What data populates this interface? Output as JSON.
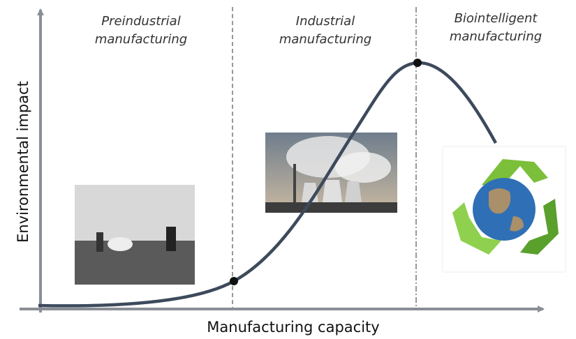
{
  "phases": [
    {
      "lines": [
        "Preindustrial",
        "manufacturing"
      ]
    },
    {
      "lines": [
        "Industrial",
        "manufacturing"
      ]
    },
    {
      "lines": [
        "Biointelligent",
        "manufacturing"
      ]
    }
  ],
  "axes": {
    "x_label": "Manufacturing capacity",
    "y_label": "Environmental impact"
  }
}
